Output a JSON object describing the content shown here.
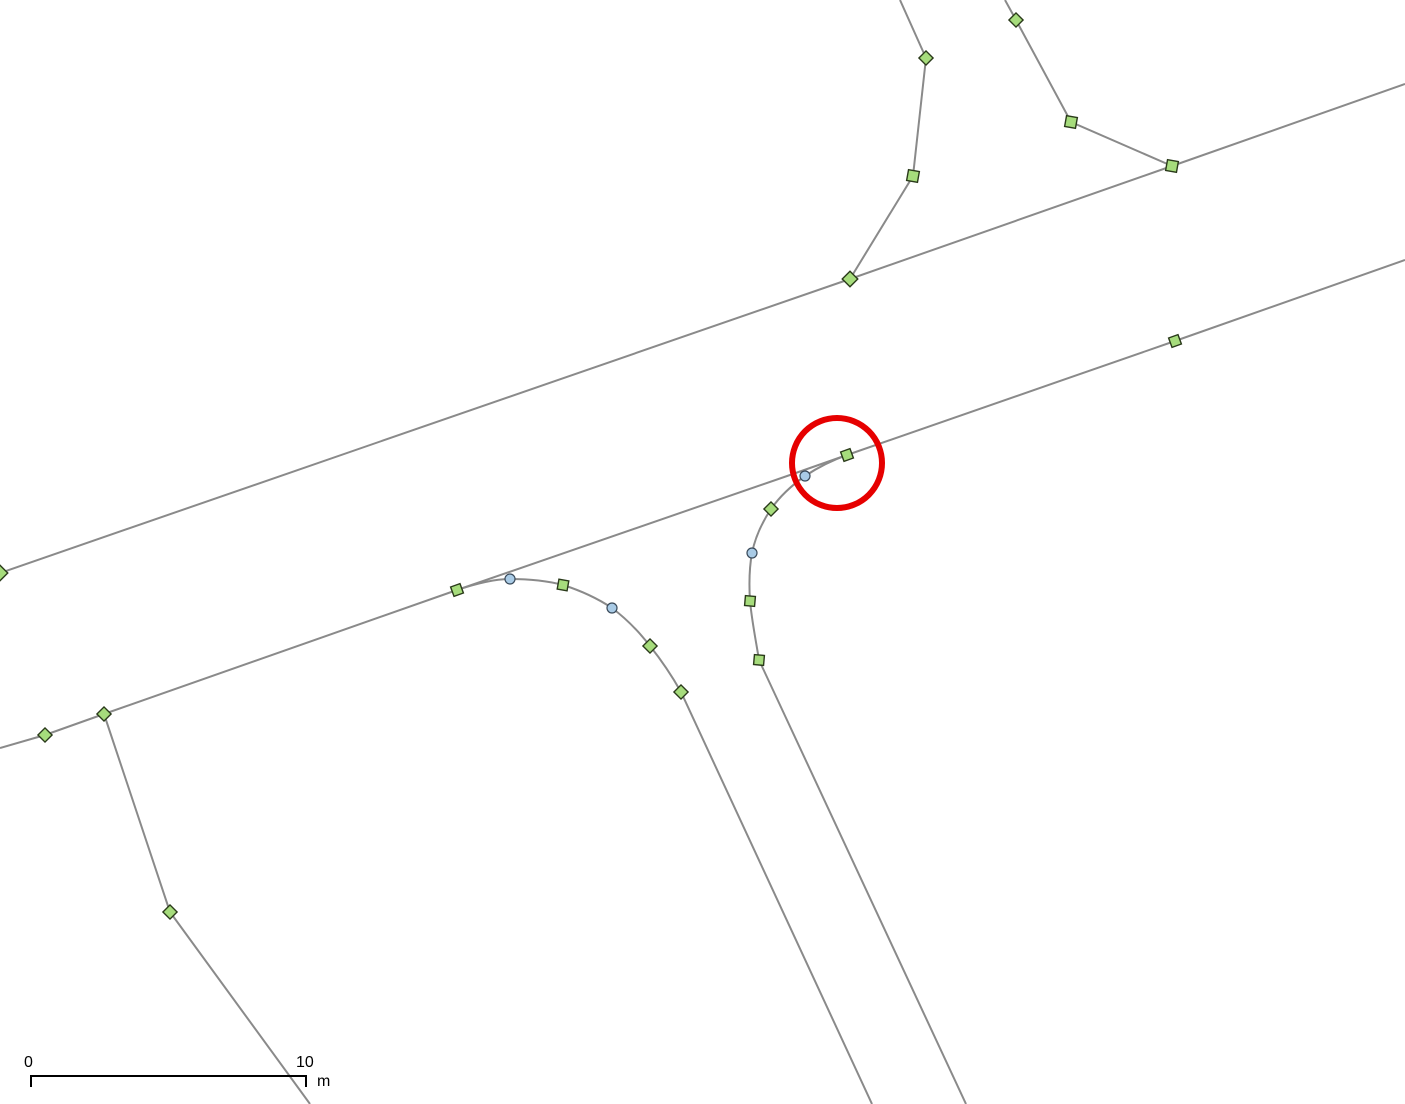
{
  "map": {
    "colors": {
      "background": "#ffffff",
      "road_edge": "#8a8a8a",
      "vertex_node": "#a6dc7c",
      "curve_control_point": "#a9cbe6",
      "highlight": "#e60000"
    },
    "highlight": {
      "shape": "circle-ring",
      "target": "curve-junction-vertex"
    }
  },
  "scale_bar": {
    "start_label": "0",
    "end_label": "10",
    "unit": "m"
  }
}
